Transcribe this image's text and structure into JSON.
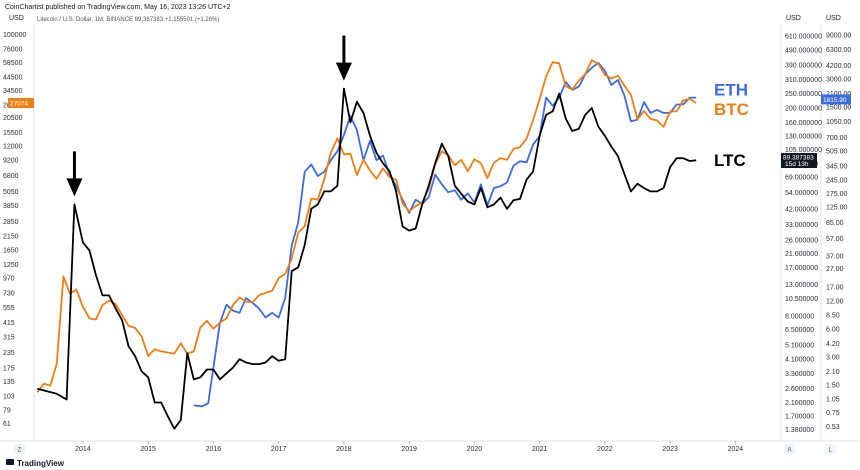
{
  "header": {
    "publisher": "CoinChartist published on TradingView.com, May 16, 2023 13:26 UTC+2",
    "symbol_line": "Litecoin / U.S. Dollar, 1M, BINANCE  89.387383  +1.155501 (+1.26%)"
  },
  "footer": {
    "brand": "TradingView",
    "left_button": "Z",
    "right_button_a": "A",
    "right_button_b": "L"
  },
  "chart_data": {
    "type": "line",
    "title": "Litecoin / U.S. Dollar, 1M, BINANCE",
    "x_tick_labels": [
      "2014",
      "2015",
      "2016",
      "2017",
      "2018",
      "2019",
      "2020",
      "2021",
      "2022",
      "2023",
      "2024"
    ],
    "x_ticks": [
      2014,
      2015,
      2016,
      2017,
      2018,
      2019,
      2020,
      2021,
      2022,
      2023,
      2024
    ],
    "xlim": [
      2013.25,
      2024.7
    ],
    "axes": {
      "left": {
        "unit": "USD",
        "scale": "log",
        "range": [
          48,
          115000
        ],
        "ticks": [
          61,
          79,
          103,
          135,
          175,
          235,
          315,
          415,
          555,
          730,
          970,
          1250,
          1650,
          2150,
          2850,
          3850,
          5050,
          6800,
          9200,
          12000,
          15500,
          20500,
          26000,
          34500,
          44500,
          58500,
          76000,
          100000
        ],
        "current_value_label": "27074"
      },
      "middle": {
        "unit": "USD",
        "scale": "log",
        "range": [
          1.25,
          700
        ],
        "ticks": [
          "1.380000",
          "1.700000",
          "2.100000",
          "2.600000",
          "3.300000",
          "4.100000",
          "5.100000",
          "6.500000",
          "8.000000",
          "10.500000",
          "13.000000",
          "17.000000",
          "21.000000",
          "26.000000",
          "33.000000",
          "42.000000",
          "54.000000",
          "69.000000",
          "85.000000",
          "105.000000",
          "130.000000",
          "160.000000",
          "200.000000",
          "250.000000",
          "310.000000",
          "390.000000",
          "490.000000",
          "610.000000"
        ],
        "current_value_label": "89.387383",
        "countdown_label": "15d 13h"
      },
      "right": {
        "unit": "USD",
        "scale": "log",
        "range": [
          0.42,
          11000
        ],
        "ticks": [
          "0.53",
          "0.75",
          "1.05",
          "1.50",
          "2.10",
          "3.00",
          "4.20",
          "6.00",
          "8.50",
          "12.00",
          "17.00",
          "27.00",
          "37.00",
          "57.00",
          "85.00",
          "125.00",
          "175.00",
          "245.00",
          "345.00",
          "505.00",
          "700.00",
          "1050.00",
          "1500.00",
          "2100.00",
          "3000.00",
          "4200.00",
          "6300.00",
          "9000.00"
        ],
        "current_value_label": "1815.90"
      }
    },
    "series": [
      {
        "name": "ETH",
        "axis": "right",
        "color": "#3d6be0",
        "x": [
          2015.7,
          2015.83,
          2015.92,
          2016.0,
          2016.1,
          2016.2,
          2016.3,
          2016.4,
          2016.5,
          2016.6,
          2016.7,
          2016.8,
          2016.9,
          2017.0,
          2017.1,
          2017.2,
          2017.3,
          2017.4,
          2017.5,
          2017.6,
          2017.7,
          2017.8,
          2017.9,
          2018.0,
          2018.1,
          2018.2,
          2018.3,
          2018.4,
          2018.5,
          2018.6,
          2018.7,
          2018.8,
          2018.9,
          2019.0,
          2019.1,
          2019.2,
          2019.3,
          2019.4,
          2019.5,
          2019.6,
          2019.7,
          2019.8,
          2019.9,
          2020.0,
          2020.1,
          2020.2,
          2020.3,
          2020.4,
          2020.5,
          2020.6,
          2020.7,
          2020.8,
          2020.9,
          2021.0,
          2021.1,
          2021.2,
          2021.3,
          2021.4,
          2021.5,
          2021.6,
          2021.7,
          2021.8,
          2021.9,
          2022.0,
          2022.1,
          2022.2,
          2022.3,
          2022.4,
          2022.5,
          2022.6,
          2022.7,
          2022.8,
          2022.9,
          2023.0,
          2023.1,
          2023.2,
          2023.3,
          2023.4
        ],
        "values": [
          0.9,
          0.88,
          0.95,
          2.3,
          7.0,
          11.0,
          9.5,
          9.0,
          13.0,
          11.5,
          10.0,
          8.0,
          9.0,
          8.0,
          13.0,
          48,
          85,
          300,
          360,
          270,
          300,
          400,
          500,
          750,
          1200,
          850,
          400,
          650,
          400,
          450,
          280,
          210,
          150,
          108,
          150,
          135,
          160,
          280,
          220,
          180,
          190,
          150,
          175,
          140,
          220,
          130,
          200,
          210,
          230,
          350,
          390,
          380,
          590,
          730,
          1900,
          1550,
          1900,
          2800,
          2300,
          2500,
          3400,
          4000,
          4500,
          3700,
          2600,
          2950,
          2000,
          1050,
          1100,
          1700,
          1300,
          1400,
          1300,
          1300,
          1600,
          1600,
          1900,
          1900
        ],
        "last_value": 1815.9
      },
      {
        "name": "BTC",
        "axis": "left",
        "color": "#ec7e16",
        "x": [
          2013.3,
          2013.4,
          2013.5,
          2013.6,
          2013.7,
          2013.8,
          2013.9,
          2014.0,
          2014.1,
          2014.2,
          2014.3,
          2014.4,
          2014.5,
          2014.6,
          2014.7,
          2014.8,
          2014.9,
          2015.0,
          2015.1,
          2015.2,
          2015.3,
          2015.4,
          2015.5,
          2015.6,
          2015.7,
          2015.8,
          2015.9,
          2016.0,
          2016.1,
          2016.2,
          2016.3,
          2016.4,
          2016.5,
          2016.6,
          2016.7,
          2016.8,
          2016.9,
          2017.0,
          2017.1,
          2017.2,
          2017.3,
          2017.4,
          2017.5,
          2017.6,
          2017.7,
          2017.8,
          2017.9,
          2018.0,
          2018.1,
          2018.2,
          2018.3,
          2018.4,
          2018.5,
          2018.6,
          2018.7,
          2018.8,
          2018.9,
          2019.0,
          2019.1,
          2019.2,
          2019.3,
          2019.4,
          2019.5,
          2019.6,
          2019.7,
          2019.8,
          2019.9,
          2020.0,
          2020.1,
          2020.2,
          2020.3,
          2020.4,
          2020.5,
          2020.6,
          2020.7,
          2020.8,
          2020.9,
          2021.0,
          2021.1,
          2021.2,
          2021.3,
          2021.4,
          2021.5,
          2021.6,
          2021.7,
          2021.8,
          2021.9,
          2022.0,
          2022.1,
          2022.2,
          2022.3,
          2022.4,
          2022.5,
          2022.6,
          2022.7,
          2022.8,
          2022.9,
          2023.0,
          2023.1,
          2023.2,
          2023.3,
          2023.4
        ],
        "values": [
          110,
          130,
          125,
          190,
          1000,
          720,
          780,
          560,
          450,
          440,
          580,
          630,
          590,
          480,
          390,
          375,
          320,
          220,
          250,
          240,
          235,
          230,
          280,
          230,
          240,
          380,
          430,
          370,
          415,
          450,
          580,
          670,
          620,
          610,
          700,
          730,
          760,
          970,
          1050,
          1400,
          2300,
          2600,
          4400,
          4300,
          6400,
          10500,
          13800,
          10200,
          10300,
          6900,
          9200,
          7500,
          6400,
          7800,
          6600,
          6300,
          4000,
          3450,
          3800,
          4100,
          5300,
          8500,
          10800,
          10000,
          8300,
          9200,
          7400,
          9300,
          8600,
          6500,
          8700,
          9500,
          9200,
          11300,
          11700,
          13800,
          19600,
          29000,
          45000,
          58800,
          57800,
          37300,
          35000,
          41500,
          47100,
          61300,
          57000,
          46300,
          43200,
          45500,
          37700,
          31800,
          19900,
          23300,
          20000,
          19400,
          17200,
          23100,
          23100,
          28400,
          29300,
          27100
        ],
        "last_value": 27074
      },
      {
        "name": "LTC",
        "axis": "middle",
        "color": "#000000",
        "x": [
          2013.3,
          2013.45,
          2013.6,
          2013.75,
          2013.87,
          2014.0,
          2014.1,
          2014.2,
          2014.3,
          2014.4,
          2014.5,
          2014.6,
          2014.7,
          2014.8,
          2014.9,
          2015.0,
          2015.1,
          2015.2,
          2015.3,
          2015.4,
          2015.5,
          2015.6,
          2015.7,
          2015.8,
          2015.9,
          2016.0,
          2016.1,
          2016.2,
          2016.3,
          2016.4,
          2016.5,
          2016.6,
          2016.7,
          2016.8,
          2016.9,
          2017.0,
          2017.1,
          2017.2,
          2017.3,
          2017.4,
          2017.5,
          2017.6,
          2017.7,
          2017.8,
          2017.9,
          2018.0,
          2018.1,
          2018.2,
          2018.3,
          2018.4,
          2018.5,
          2018.6,
          2018.7,
          2018.8,
          2018.9,
          2019.0,
          2019.1,
          2019.2,
          2019.3,
          2019.4,
          2019.5,
          2019.6,
          2019.7,
          2019.8,
          2019.9,
          2020.0,
          2020.1,
          2020.2,
          2020.3,
          2020.4,
          2020.5,
          2020.6,
          2020.7,
          2020.8,
          2020.9,
          2021.0,
          2021.1,
          2021.2,
          2021.3,
          2021.4,
          2021.5,
          2021.6,
          2021.7,
          2021.8,
          2021.9,
          2022.0,
          2022.1,
          2022.2,
          2022.3,
          2022.4,
          2022.5,
          2022.6,
          2022.7,
          2022.8,
          2022.9,
          2023.0,
          2023.1,
          2023.2,
          2023.3,
          2023.4
        ],
        "values": [
          2.6,
          2.5,
          2.4,
          2.2,
          45,
          25,
          22,
          15,
          11,
          11,
          9,
          7.5,
          5.0,
          4.3,
          3.4,
          3.1,
          2.1,
          2.1,
          1.7,
          1.4,
          1.6,
          4.5,
          3.0,
          3.1,
          3.5,
          3.5,
          3.0,
          3.3,
          3.6,
          4.1,
          3.9,
          3.8,
          3.8,
          3.9,
          4.3,
          4.0,
          4.1,
          16,
          17,
          24,
          42,
          45,
          55,
          55,
          60,
          270,
          160,
          220,
          185,
          130,
          100,
          85,
          75,
          55,
          32,
          30,
          31,
          45,
          60,
          85,
          115,
          95,
          60,
          53,
          47,
          45,
          58,
          43,
          45,
          50,
          42,
          48,
          49,
          66,
          75,
          130,
          180,
          190,
          250,
          170,
          140,
          145,
          180,
          200,
          150,
          130,
          110,
          95,
          72,
          55,
          62,
          58,
          55,
          55,
          58,
          80,
          92,
          92,
          88,
          89
        ],
        "last_value": 89.387383
      }
    ],
    "annotations": [
      {
        "type": "arrow-down",
        "x": 2013.87,
        "target_series": "LTC"
      },
      {
        "type": "arrow-down",
        "x": 2018.0,
        "target_series": "LTC"
      }
    ],
    "legend_placement": "right",
    "grid": false
  }
}
